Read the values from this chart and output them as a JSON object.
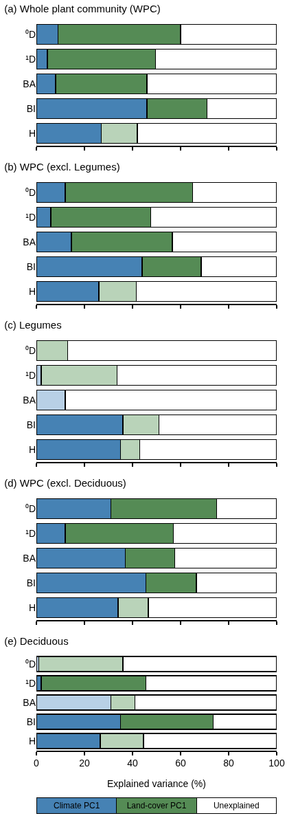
{
  "chart_data": [
    {
      "type": "bar",
      "orientation": "horizontal",
      "stacked": true,
      "title": "(a) Whole plant community (WPC)",
      "categories": [
        "⁰D",
        "¹D",
        "BA",
        "BI",
        "H"
      ],
      "xlim": [
        0,
        100
      ],
      "xticks": [
        {
          "value": 0,
          "label": null
        },
        {
          "value": 20,
          "label": null
        },
        {
          "value": 40,
          "label": null
        },
        {
          "value": 60,
          "label": null
        },
        {
          "value": 80,
          "label": null
        },
        {
          "value": 100,
          "label": null
        }
      ],
      "tick_labels": "y",
      "legend": false,
      "series": [
        {
          "colors": [
            "#4682b4",
            "#4682b4",
            "#4682b4",
            "#4682b4",
            "#4682b4"
          ],
          "values": [
            9,
            4.5,
            8,
            46,
            27
          ]
        },
        {
          "colors": [
            "#558b55",
            "#558b55",
            "#558b55",
            "#558b55",
            "#b9d3b9"
          ],
          "values": [
            51,
            45,
            38,
            25,
            15
          ]
        },
        {
          "colors": [
            "#ffffff",
            "#ffffff",
            "#ffffff",
            "#ffffff",
            "#ffffff"
          ],
          "values": [
            40,
            50.5,
            54,
            29,
            58
          ]
        }
      ]
    },
    {
      "type": "bar",
      "orientation": "horizontal",
      "stacked": true,
      "title": "(b) WPC (excl. Legumes)",
      "categories": [
        "⁰D",
        "¹D",
        "BA",
        "BI",
        "H"
      ],
      "xlim": [
        0,
        100
      ],
      "xticks": [
        {
          "value": 0,
          "label": null
        },
        {
          "value": 20,
          "label": null
        },
        {
          "value": 40,
          "label": null
        },
        {
          "value": 60,
          "label": null
        },
        {
          "value": 80,
          "label": null
        },
        {
          "value": 100,
          "label": null
        }
      ],
      "tick_labels": "y",
      "legend": false,
      "series": [
        {
          "colors": [
            "#4682b4",
            "#4682b4",
            "#4682b4",
            "#4682b4",
            "#4682b4"
          ],
          "values": [
            12,
            6,
            14.5,
            44,
            26
          ]
        },
        {
          "colors": [
            "#558b55",
            "#558b55",
            "#558b55",
            "#558b55",
            "#b9d3b9"
          ],
          "values": [
            53,
            41.5,
            42,
            24.5,
            15.5
          ]
        },
        {
          "colors": [
            "#ffffff",
            "#ffffff",
            "#ffffff",
            "#ffffff",
            "#ffffff"
          ],
          "values": [
            35,
            52.5,
            43.5,
            31.5,
            58.5
          ]
        }
      ]
    },
    {
      "type": "bar",
      "orientation": "horizontal",
      "stacked": true,
      "title": "(c) Legumes",
      "categories": [
        "⁰D",
        "¹D",
        "BA",
        "BI",
        "H"
      ],
      "xlim": [
        0,
        100
      ],
      "xticks": [
        {
          "value": 0,
          "label": null
        },
        {
          "value": 20,
          "label": null
        },
        {
          "value": 40,
          "label": null
        },
        {
          "value": 60,
          "label": null
        },
        {
          "value": 80,
          "label": null
        },
        {
          "value": 100,
          "label": null
        }
      ],
      "tick_labels": "y",
      "legend": false,
      "series": [
        {
          "colors": [
            "#4682b4",
            "#b8d0e6",
            "#b8d0e6",
            "#4682b4",
            "#4682b4"
          ],
          "values": [
            0,
            2,
            12,
            36,
            35
          ]
        },
        {
          "colors": [
            "#b9d3b9",
            "#b9d3b9",
            "#b9d3b9",
            "#b9d3b9",
            "#b9d3b9"
          ],
          "values": [
            13,
            31.5,
            0,
            15,
            8
          ]
        },
        {
          "colors": [
            "#ffffff",
            "#ffffff",
            "#ffffff",
            "#ffffff",
            "#ffffff"
          ],
          "values": [
            87,
            66.5,
            88,
            49,
            57
          ]
        }
      ]
    },
    {
      "type": "bar",
      "orientation": "horizontal",
      "stacked": true,
      "title": "(d) WPC (excl. Deciduous)",
      "categories": [
        "⁰D",
        "¹D",
        "BA",
        "BI",
        "H"
      ],
      "xlim": [
        0,
        100
      ],
      "xticks": [
        {
          "value": 0,
          "label": null
        },
        {
          "value": 20,
          "label": null
        },
        {
          "value": 40,
          "label": null
        },
        {
          "value": 60,
          "label": null
        },
        {
          "value": 80,
          "label": null
        },
        {
          "value": 100,
          "label": null
        }
      ],
      "tick_labels": "y",
      "legend": false,
      "series": [
        {
          "colors": [
            "#4682b4",
            "#4682b4",
            "#4682b4",
            "#4682b4",
            "#4682b4"
          ],
          "values": [
            31,
            12,
            37,
            45.5,
            34
          ]
        },
        {
          "colors": [
            "#558b55",
            "#558b55",
            "#558b55",
            "#558b55",
            "#b9d3b9"
          ],
          "values": [
            44,
            45,
            20.5,
            21,
            12.5
          ]
        },
        {
          "colors": [
            "#ffffff",
            "#ffffff",
            "#ffffff",
            "#ffffff",
            "#ffffff"
          ],
          "values": [
            25,
            43,
            42.5,
            33.5,
            53.5
          ]
        }
      ]
    },
    {
      "type": "bar",
      "orientation": "horizontal",
      "stacked": true,
      "title": "(e) Deciduous",
      "xlabel": "Explained variance (%)",
      "categories": [
        "⁰D",
        "¹D",
        "BA",
        "BI",
        "H"
      ],
      "xlim": [
        0,
        100
      ],
      "xticks": [
        0,
        20,
        40,
        60,
        80,
        100
      ],
      "legend": "bottom",
      "series": [
        {
          "name": "Climate PC1",
          "color": "#4682b4",
          "colors": [
            "#b8d0e6",
            "#4682b4",
            "#b8d0e6",
            "#4682b4",
            "#4682b4"
          ],
          "values": [
            1,
            2,
            31,
            35,
            26.5
          ]
        },
        {
          "name": "Land-cover PC1",
          "color": "#558b55",
          "colors": [
            "#b9d3b9",
            "#558b55",
            "#b9d3b9",
            "#558b55",
            "#b9d3b9"
          ],
          "values": [
            35,
            43.5,
            10,
            38.5,
            18
          ]
        },
        {
          "name": "Unexplained",
          "color": "#ffffff",
          "colors": [
            "#ffffff",
            "#ffffff",
            "#ffffff",
            "#ffffff",
            "#ffffff"
          ],
          "values": [
            64,
            54.5,
            59,
            26.5,
            55.5
          ]
        }
      ]
    }
  ]
}
